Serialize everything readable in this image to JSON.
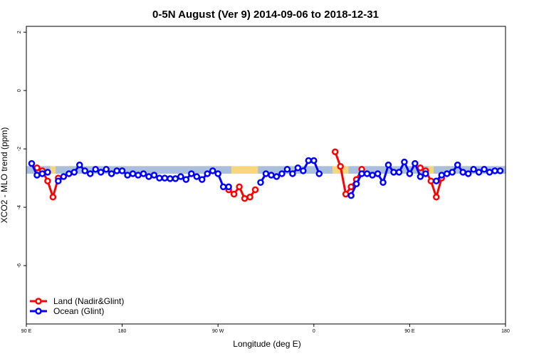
{
  "chart_data": {
    "type": "line",
    "title": "0-5N August (Ver 9)   2014-09-06 to 2018-12-31",
    "x_label": "Longitude (deg E)",
    "y_label": "XCO2 - MLO trend (ppm)",
    "xlim": [
      90,
      540
    ],
    "ylim": [
      -8,
      2.2
    ],
    "xticks": [
      {
        "value": 90,
        "label": "90 E"
      },
      180,
      {
        "value": 270,
        "label": "90 W"
      },
      {
        "value": 360,
        "label": "0"
      },
      {
        "value": 450,
        "label": "90 E"
      },
      {
        "value": 540,
        "label": "180"
      }
    ],
    "yticks": [
      2,
      0,
      -2,
      -4,
      -6
    ],
    "legend": "bottom-left",
    "x": [
      95,
      100,
      105,
      110,
      115,
      120,
      125,
      130,
      135,
      140,
      145,
      150,
      155,
      160,
      165,
      170,
      175,
      180,
      185,
      190,
      195,
      200,
      205,
      210,
      215,
      220,
      225,
      230,
      235,
      240,
      245,
      250,
      255,
      260,
      265,
      270,
      275,
      280,
      285,
      290,
      295,
      300,
      305,
      310,
      315,
      320,
      325,
      330,
      335,
      340,
      345,
      350,
      355,
      360,
      365,
      370,
      375,
      380,
      385,
      390,
      395,
      400,
      405,
      410,
      415,
      420,
      425,
      430,
      435,
      440,
      445,
      450,
      455,
      460,
      465,
      470,
      475,
      480,
      485,
      490,
      495,
      500,
      505,
      510,
      515,
      520,
      525,
      530,
      535
    ],
    "series": [
      {
        "name": "Land (Nadir&Glint)",
        "color": "#ff0000",
        "values": [
          null,
          -2.65,
          -2.75,
          -3.1,
          -3.65,
          -3.0,
          null,
          null,
          null,
          null,
          null,
          null,
          null,
          null,
          null,
          null,
          null,
          null,
          null,
          null,
          null,
          null,
          null,
          null,
          null,
          null,
          null,
          null,
          null,
          null,
          null,
          null,
          null,
          null,
          null,
          null,
          null,
          -3.4,
          -3.55,
          -3.3,
          -3.7,
          -3.65,
          -3.4,
          null,
          null,
          null,
          null,
          null,
          null,
          null,
          null,
          null,
          null,
          null,
          null,
          null,
          null,
          -2.1,
          -2.6,
          -3.55,
          -3.3,
          -3.05,
          -2.7,
          null,
          null,
          null,
          null,
          null,
          null,
          null,
          null,
          null,
          null,
          -2.65,
          -2.75,
          -3.1,
          -3.65,
          -3.0,
          null,
          null,
          null,
          null,
          null,
          null,
          null,
          null,
          null,
          null,
          null
        ]
      },
      {
        "name": "Ocean (Glint)",
        "color": "#0000ff",
        "values": [
          -2.5,
          -2.9,
          -2.85,
          -2.8,
          null,
          -3.1,
          -2.95,
          -2.85,
          -2.8,
          -2.55,
          -2.75,
          -2.85,
          -2.7,
          -2.8,
          -2.7,
          -2.85,
          -2.75,
          -2.75,
          -2.9,
          -2.85,
          -2.9,
          -2.85,
          -2.95,
          -2.9,
          -3.0,
          -3.0,
          -3.02,
          -3.02,
          -2.95,
          -3.05,
          -2.85,
          -2.95,
          -3.05,
          -2.85,
          -2.75,
          -2.85,
          -3.3,
          -3.3,
          null,
          null,
          null,
          null,
          null,
          -3.15,
          -2.85,
          -2.9,
          -2.95,
          -2.85,
          -2.7,
          -2.85,
          -2.65,
          -2.75,
          -2.4,
          -2.4,
          -2.85,
          null,
          null,
          null,
          null,
          null,
          -3.6,
          -3.2,
          -2.85,
          -2.85,
          -2.9,
          -2.85,
          -3.15,
          -2.55,
          -2.8,
          -2.8,
          -2.45,
          -2.85,
          -2.5,
          -2.95,
          -2.85,
          null,
          -3.1,
          -2.9,
          -2.85,
          -2.8,
          -2.55,
          -2.8,
          -2.85,
          -2.7,
          -2.8,
          -2.7,
          -2.8,
          -2.75,
          -2.75
        ]
      }
    ]
  }
}
